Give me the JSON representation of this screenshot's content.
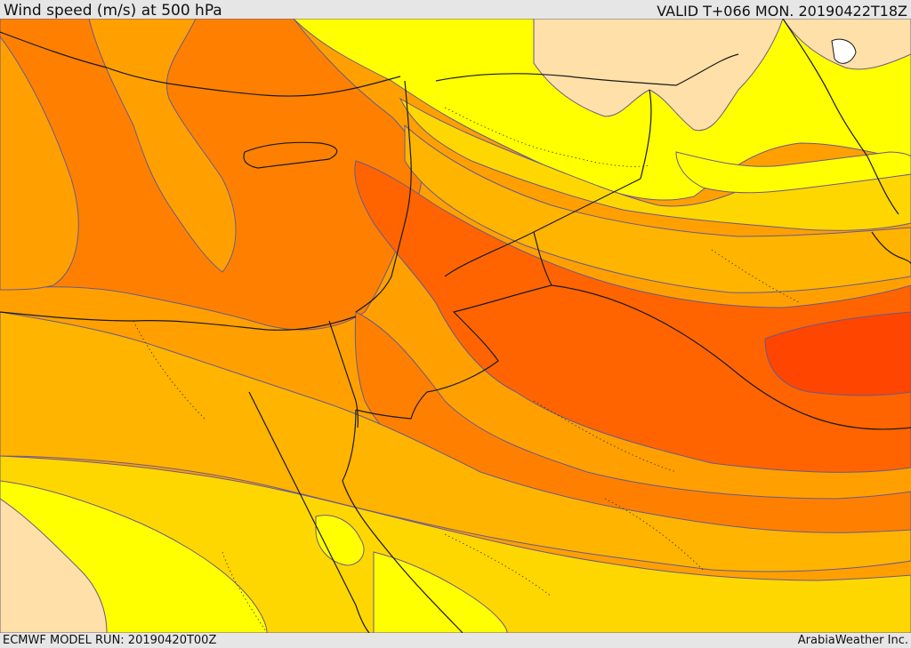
{
  "header": {
    "title": "Wind speed (m/s) at 500 hPa",
    "valid": "VALID T+066 MON. 20190422T18Z"
  },
  "footer": {
    "model_run": "ECMWF MODEL RUN: 20190420T00Z",
    "credit": "ArabiaWeather Inc."
  },
  "map": {
    "variable": "wind speed",
    "units": "m/s",
    "level": "500 hPa",
    "region": "Eastern Mediterranean, Levant, Egypt, Iraq, Northern Arabia",
    "color_scale": [
      "#ffe0a8",
      "#ffff00",
      "#ffd700",
      "#ffb400",
      "#ffa000",
      "#ff8000",
      "#ff6400",
      "#ff4500"
    ],
    "colors": {
      "background": "#ffa000",
      "contour_line": "#6a5a8a",
      "border_line": "#1a1a1a",
      "internal_boundary": "#333333"
    }
  }
}
